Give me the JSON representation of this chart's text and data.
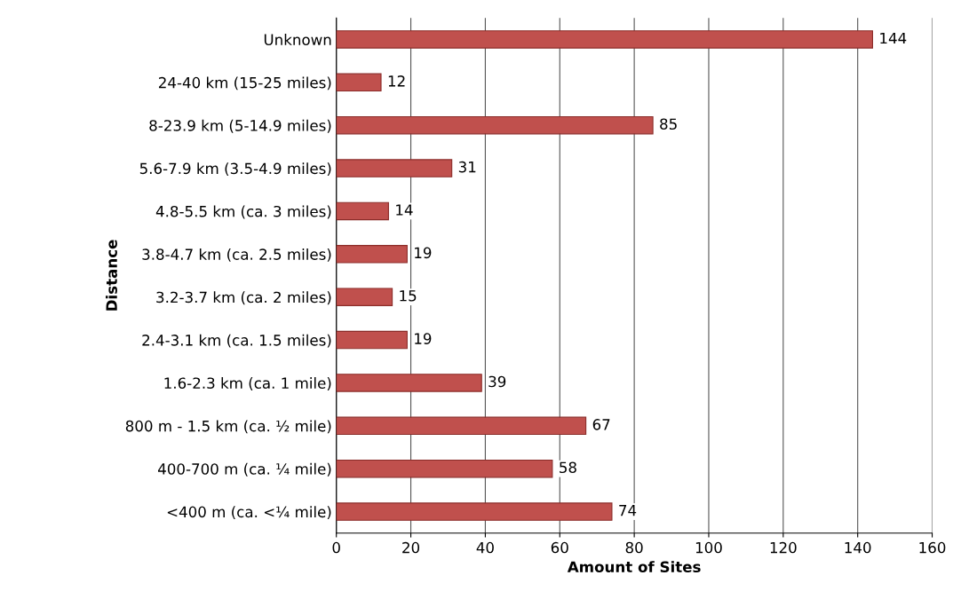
{
  "chart_data": {
    "type": "bar",
    "orientation": "horizontal",
    "xlabel": "Amount of Sites",
    "ylabel": "Distance",
    "categories": [
      "Unknown",
      "24-40 km (15-25 miles)",
      "8-23.9 km (5-14.9 miles)",
      "5.6-7.9 km (3.5-4.9 miles)",
      "4.8-5.5 km (ca. 3 miles)",
      "3.8-4.7 km (ca. 2.5 miles)",
      "3.2-3.7 km (ca. 2 miles)",
      "2.4-3.1 km (ca. 1.5 miles)",
      "1.6-2.3 km (ca. 1 mile)",
      "800 m - 1.5 km (ca. ½ mile)",
      "400-700 m (ca. ¼ mile)",
      "<400 m (ca. <¼ mile)"
    ],
    "values": [
      144,
      12,
      85,
      31,
      14,
      19,
      15,
      19,
      39,
      67,
      58,
      74
    ],
    "color": "#c0504d",
    "data_labels": true,
    "xlim": [
      0,
      160
    ],
    "xticks": [
      0,
      20,
      40,
      60,
      80,
      100,
      120,
      140,
      160
    ],
    "grid": "x"
  }
}
